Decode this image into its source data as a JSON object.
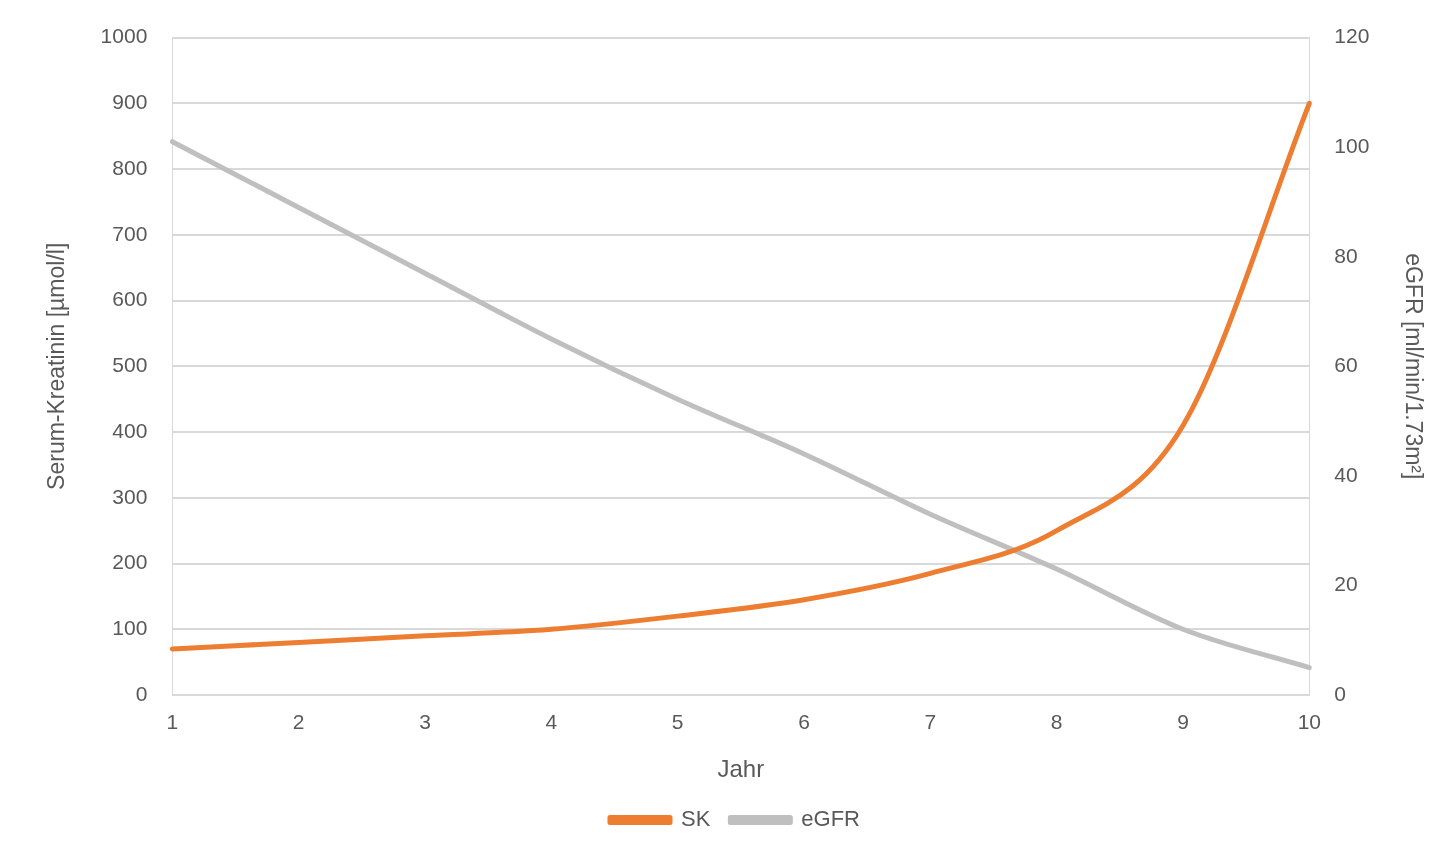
{
  "chart_data": {
    "type": "line",
    "xlabel": "Jahr",
    "ylabel": "Serum-Kreatinin [µmol/l]",
    "y2label": "eGFR [ml/min/1.73m²]",
    "categories": [
      "1",
      "2",
      "3",
      "4",
      "5",
      "6",
      "7",
      "8",
      "9",
      "10"
    ],
    "series": [
      {
        "name": "SK",
        "color": "#ed7d31",
        "values": [
          70,
          80,
          90,
          100,
          120,
          145,
          185,
          250,
          410,
          900
        ]
      },
      {
        "name": "eGFR",
        "color": "#bfbfbf",
        "axis": "y2",
        "values": [
          101,
          89,
          77,
          65,
          54,
          44,
          33,
          23,
          12,
          5
        ]
      }
    ],
    "ylim": [
      0,
      1000
    ],
    "yticks": [
      0,
      100,
      200,
      300,
      400,
      500,
      600,
      700,
      800,
      900,
      1000
    ],
    "y2lim": [
      0,
      120
    ],
    "y2ticks": [
      0,
      20,
      40,
      60,
      80,
      100,
      120
    ],
    "grid": "y",
    "legend": "bottom",
    "marker": "none",
    "line_style": "solid"
  }
}
